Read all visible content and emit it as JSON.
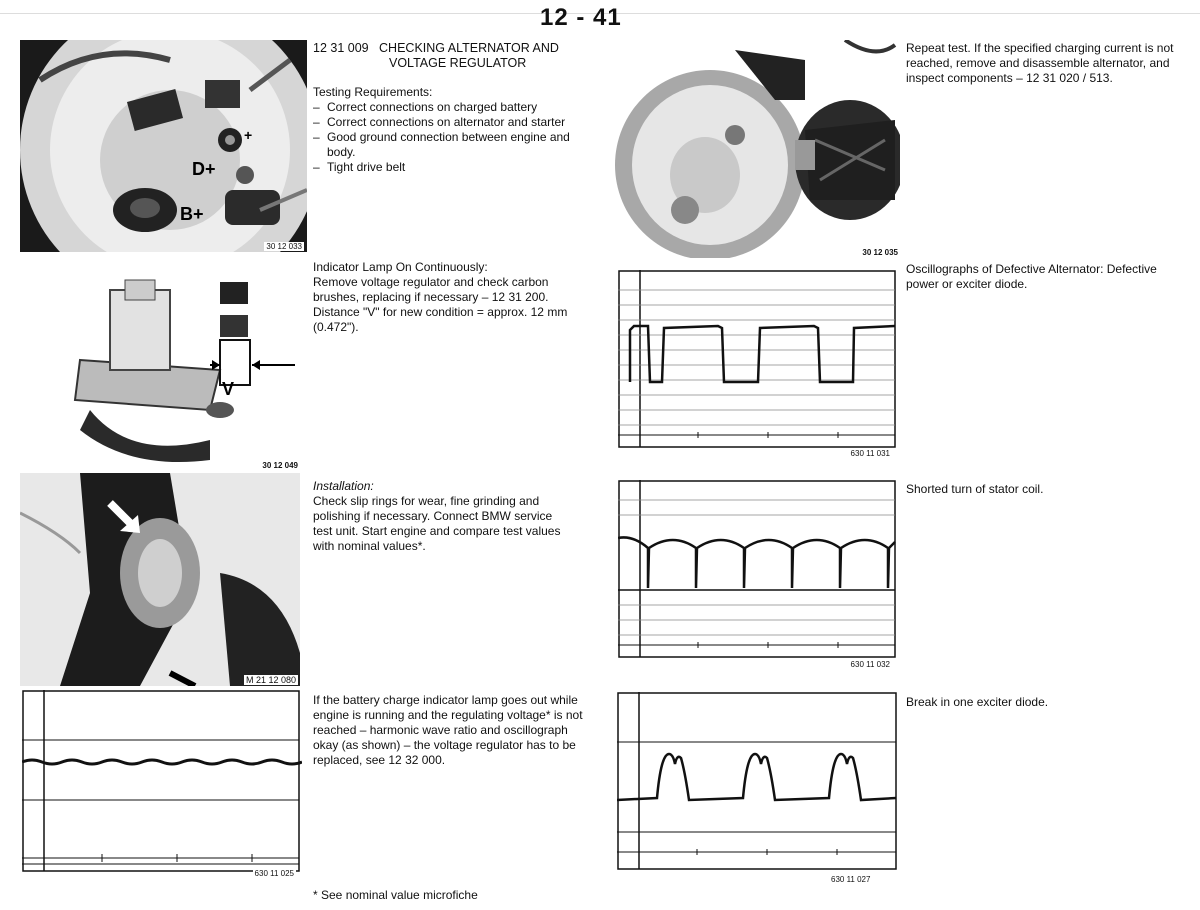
{
  "page": {
    "number": "12 - 41"
  },
  "sections": {
    "checking": {
      "code": "12 31 009",
      "title_line1": "CHECKING ALTERNATOR AND",
      "title_line2": "VOLTAGE REGULATOR",
      "req_heading": "Testing Requirements:",
      "requirements": [
        "Correct connections on charged battery",
        "Correct connections on alternator and starter",
        "Good ground connection between engine and body.",
        "Tight drive belt"
      ],
      "fig_label": "30 12 033",
      "photo_labels": {
        "dplus": "D+",
        "bplus": "B+",
        "plus": "+"
      }
    },
    "lamp": {
      "heading": "Indicator Lamp On Continuously:",
      "body": "Remove voltage regulator and check carbon brushes, replacing if necessary – 12 31 200. Distance \"V\" for new condition = approx. 12 mm (0.472\").",
      "fig_label": "30 12 049",
      "v_label": "V"
    },
    "installation": {
      "heading": "Installation:",
      "body": "Check slip rings for wear, fine grinding and polishing if necessary. Connect BMW service test unit. Start engine and compare test values with nominal values*.",
      "fig_label": "M 21 12 080"
    },
    "lamp_out": {
      "body": "If the battery charge indicator lamp goes out while engine is running and the regulating voltage* is not reached – harmonic wave ratio and oscillograph okay (as shown) – the voltage regulator has to be replaced, see 12 32 000.",
      "fig_label": "630 11 025",
      "footnote": "* See nominal value microfiche"
    },
    "repeat": {
      "body": "Repeat test. If the specified charging current is not reached, remove and disassemble alternator, and inspect components – 12 31 020 / 513.",
      "fig_label": "30 12 035"
    },
    "osc_defective": {
      "body": "Oscillographs of Defective Alternator: Defective power or exciter diode.",
      "fig_label": "630 11 031"
    },
    "shorted": {
      "body": "Shorted turn of stator coil.",
      "fig_label": "630 11 032"
    },
    "break": {
      "body": "Break in one exciter diode.",
      "fig_label": "630 11 027"
    }
  }
}
